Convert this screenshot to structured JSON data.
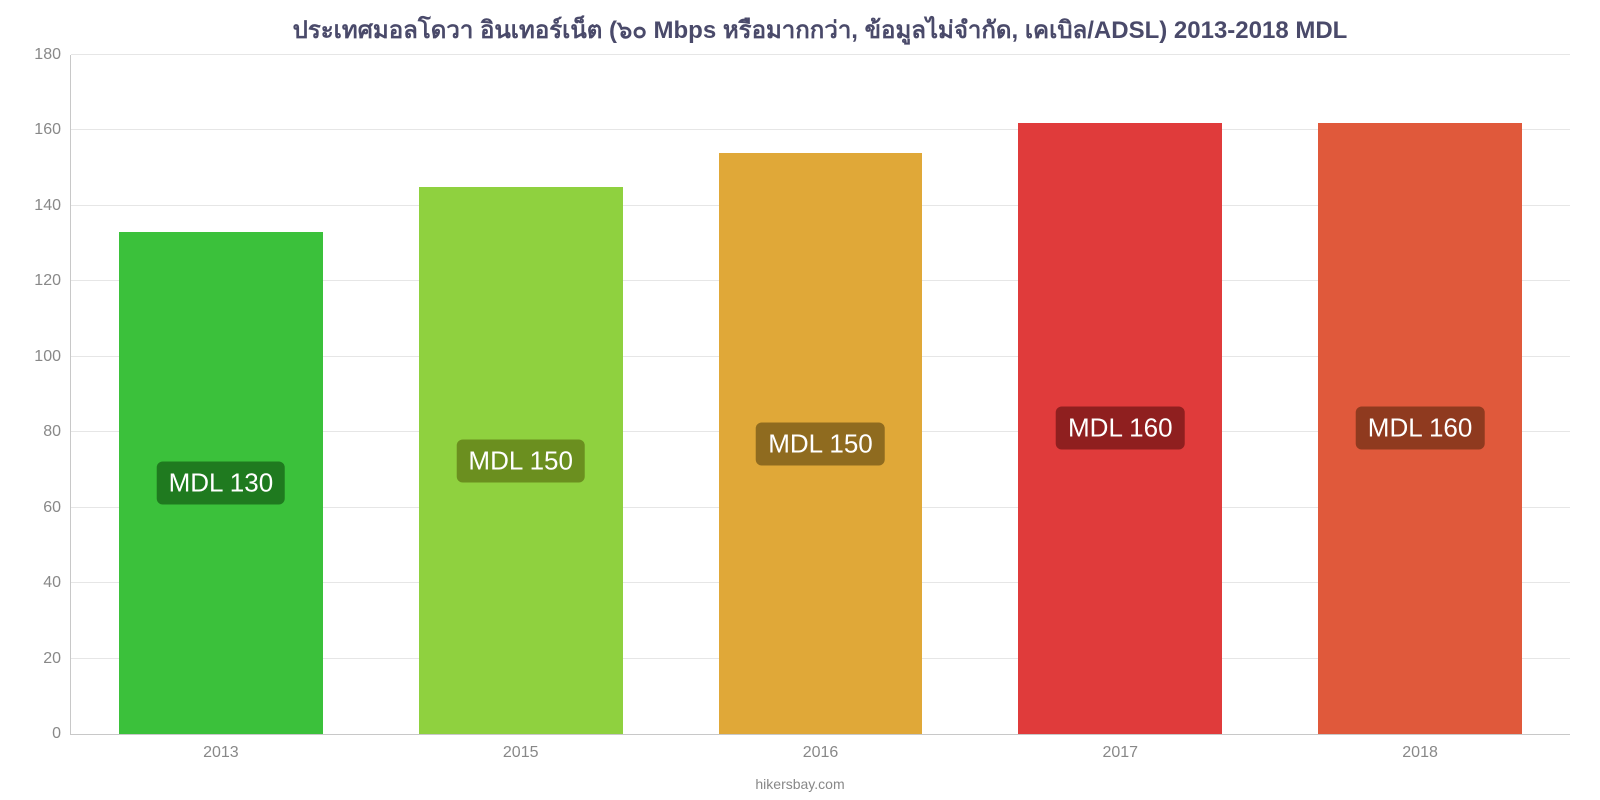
{
  "chart": {
    "type": "bar",
    "title": "ประเทศมอลโดวา อินเทอร์เน็ต (๖๐ Mbps หรือมากกว่า, ข้อมูลไม่จำกัด, เคเบิล/ADSL) 2013-2018 MDL",
    "title_fontsize": 24,
    "title_color": "#4a4a6a",
    "background_color": "#ffffff",
    "grid_color": "#e6e6e6",
    "axis_color": "#c8c8c8",
    "tick_label_color": "#888888",
    "tick_label_fontsize": 16,
    "ylim": [
      0,
      180
    ],
    "ytick_step": 20,
    "yticks": [
      0,
      20,
      40,
      60,
      80,
      100,
      120,
      140,
      160,
      180
    ],
    "bar_width_pct": 68,
    "categories": [
      "2013",
      "2015",
      "2016",
      "2017",
      "2018"
    ],
    "values": [
      133,
      145,
      154,
      162,
      162
    ],
    "bar_colors": [
      "#3bc13b",
      "#8fd13f",
      "#e0a838",
      "#e03b3b",
      "#e0593b"
    ],
    "value_labels": [
      "MDL 130",
      "MDL 150",
      "MDL 150",
      "MDL 160",
      "MDL 160"
    ],
    "label_bg_colors": [
      "#1f7a1f",
      "#6b8f1f",
      "#8f6b1f",
      "#8f1f1f",
      "#8f3a1f"
    ],
    "label_fontsize": 26,
    "label_color": "#ffffff",
    "attribution": "hikersbay.com",
    "attribution_fontsize": 14
  }
}
